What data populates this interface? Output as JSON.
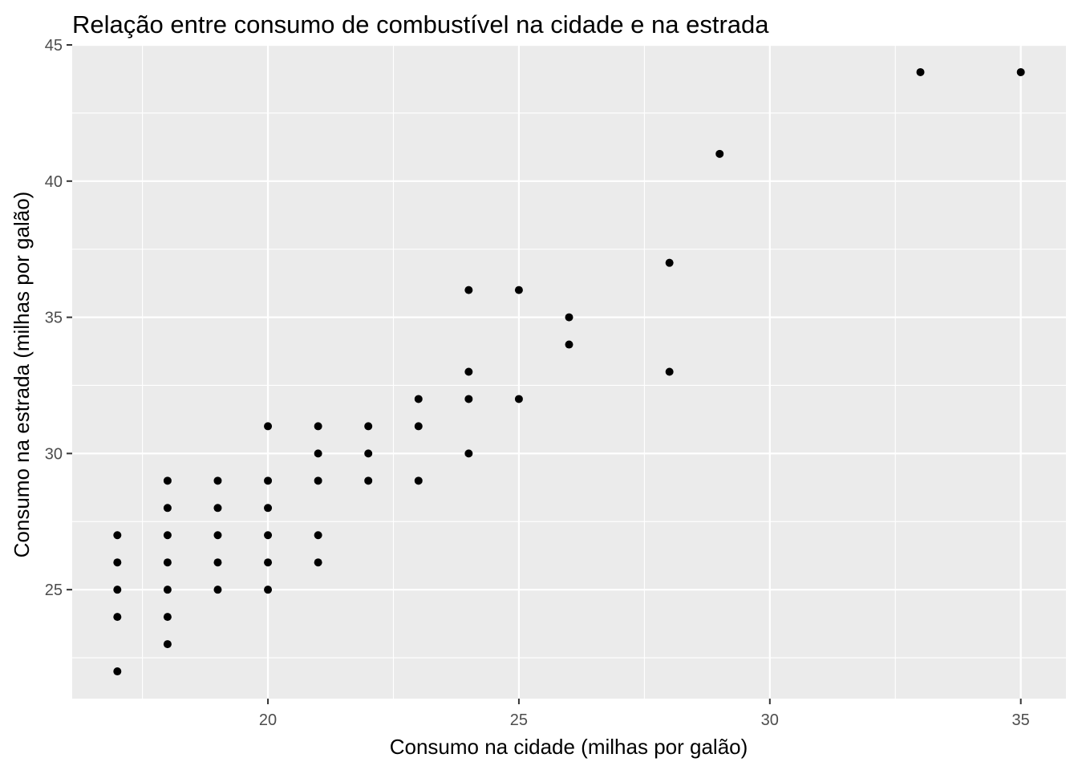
{
  "chart_data": {
    "type": "scatter",
    "title": "Relação entre consumo de combustível na cidade e na estrada",
    "xlabel": "Consumo na cidade (milhas por galão)",
    "ylabel": "Consumo na estrada (milhas por galão)",
    "xlim": [
      16.1,
      35.9
    ],
    "ylim": [
      21.0,
      45.0
    ],
    "x_ticks": [
      20,
      25,
      30,
      35
    ],
    "y_ticks": [
      25,
      30,
      35,
      40,
      45
    ],
    "grid": true,
    "legend": "none",
    "colors": {
      "panel": "#ebebeb",
      "grid": "#ffffff",
      "points": "#000000",
      "ticks": "#4d4d4d"
    },
    "points": [
      [
        17,
        22
      ],
      [
        17,
        24
      ],
      [
        17,
        25
      ],
      [
        17,
        26
      ],
      [
        17,
        27
      ],
      [
        18,
        23
      ],
      [
        18,
        24
      ],
      [
        18,
        25
      ],
      [
        18,
        26
      ],
      [
        18,
        27
      ],
      [
        18,
        28
      ],
      [
        18,
        29
      ],
      [
        19,
        25
      ],
      [
        19,
        26
      ],
      [
        19,
        27
      ],
      [
        19,
        28
      ],
      [
        19,
        29
      ],
      [
        20,
        25
      ],
      [
        20,
        26
      ],
      [
        20,
        27
      ],
      [
        20,
        28
      ],
      [
        20,
        29
      ],
      [
        20,
        31
      ],
      [
        21,
        26
      ],
      [
        21,
        27
      ],
      [
        21,
        29
      ],
      [
        21,
        30
      ],
      [
        21,
        31
      ],
      [
        22,
        29
      ],
      [
        22,
        30
      ],
      [
        22,
        31
      ],
      [
        23,
        29
      ],
      [
        23,
        31
      ],
      [
        23,
        32
      ],
      [
        24,
        30
      ],
      [
        24,
        32
      ],
      [
        24,
        33
      ],
      [
        24,
        36
      ],
      [
        25,
        32
      ],
      [
        25,
        36
      ],
      [
        26,
        34
      ],
      [
        26,
        35
      ],
      [
        28,
        33
      ],
      [
        28,
        37
      ],
      [
        29,
        41
      ],
      [
        33,
        44
      ],
      [
        35,
        44
      ]
    ]
  }
}
